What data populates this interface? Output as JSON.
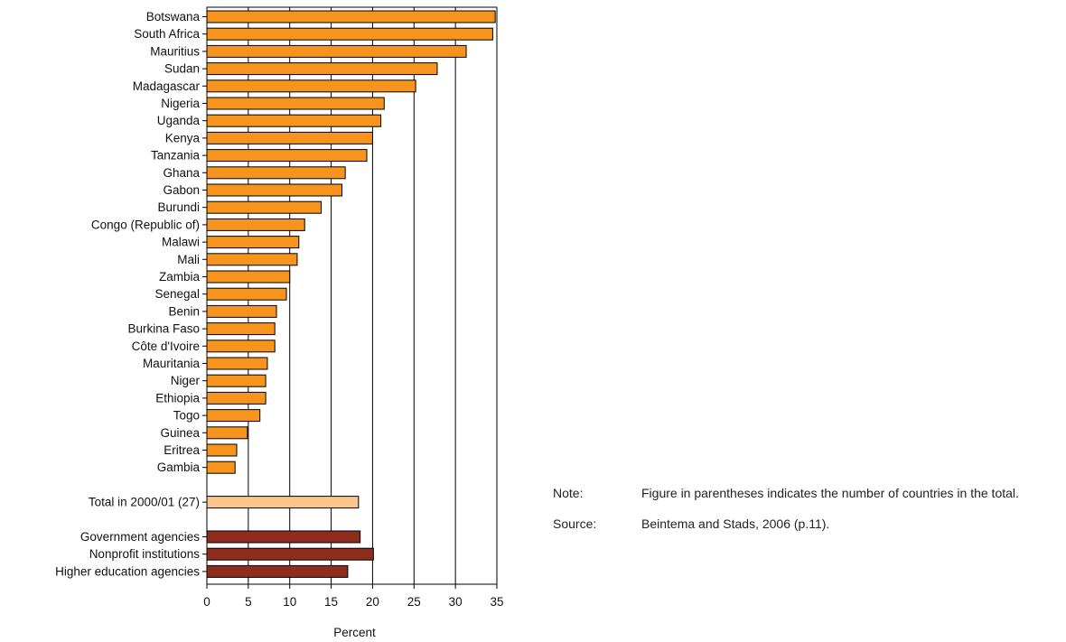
{
  "chart_data": {
    "type": "bar",
    "orientation": "horizontal",
    "xlabel": "Percent",
    "xlim": [
      0,
      35
    ],
    "xticks": [
      0,
      5,
      10,
      15,
      20,
      25,
      30,
      35
    ],
    "grid": "vertical",
    "groups": [
      {
        "name": "countries",
        "color": "#F7941D",
        "categories": [
          "Botswana",
          "South Africa",
          "Mauritius",
          "Sudan",
          "Madagascar",
          "Nigeria",
          "Uganda",
          "Kenya",
          "Tanzania",
          "Ghana",
          "Gabon",
          "Burundi",
          "Congo (Republic of)",
          "Malawi",
          "Mali",
          "Zambia",
          "Senegal",
          "Benin",
          "Burkina Faso",
          "Côte d'Ivoire",
          "Mauritania",
          "Niger",
          "Ethiopia",
          "Togo",
          "Guinea",
          "Eritrea",
          "Gambia"
        ],
        "values": [
          34.8,
          34.5,
          31.3,
          27.8,
          25.2,
          21.4,
          21.0,
          20.0,
          19.3,
          16.7,
          16.3,
          13.8,
          11.8,
          11.1,
          10.9,
          10.0,
          9.6,
          8.4,
          8.2,
          8.2,
          7.3,
          7.1,
          7.1,
          6.4,
          4.9,
          3.6,
          3.4
        ]
      },
      {
        "name": "total",
        "color": "#FBC58E",
        "categories": [
          "Total in 2000/01 (27)"
        ],
        "values": [
          18.3
        ]
      },
      {
        "name": "institutions",
        "color": "#8E2C1E",
        "categories": [
          "Government agencies",
          "Nonprofit institutions",
          "Higher education agencies"
        ],
        "values": [
          18.5,
          20.1,
          17.0
        ]
      }
    ]
  },
  "notes": [
    {
      "label": "Note:",
      "text": "Figure in parentheses indicates the number of countries in the total."
    },
    {
      "label": "Source:",
      "text": "Beintema and Stads, 2006 (p.11)."
    }
  ]
}
